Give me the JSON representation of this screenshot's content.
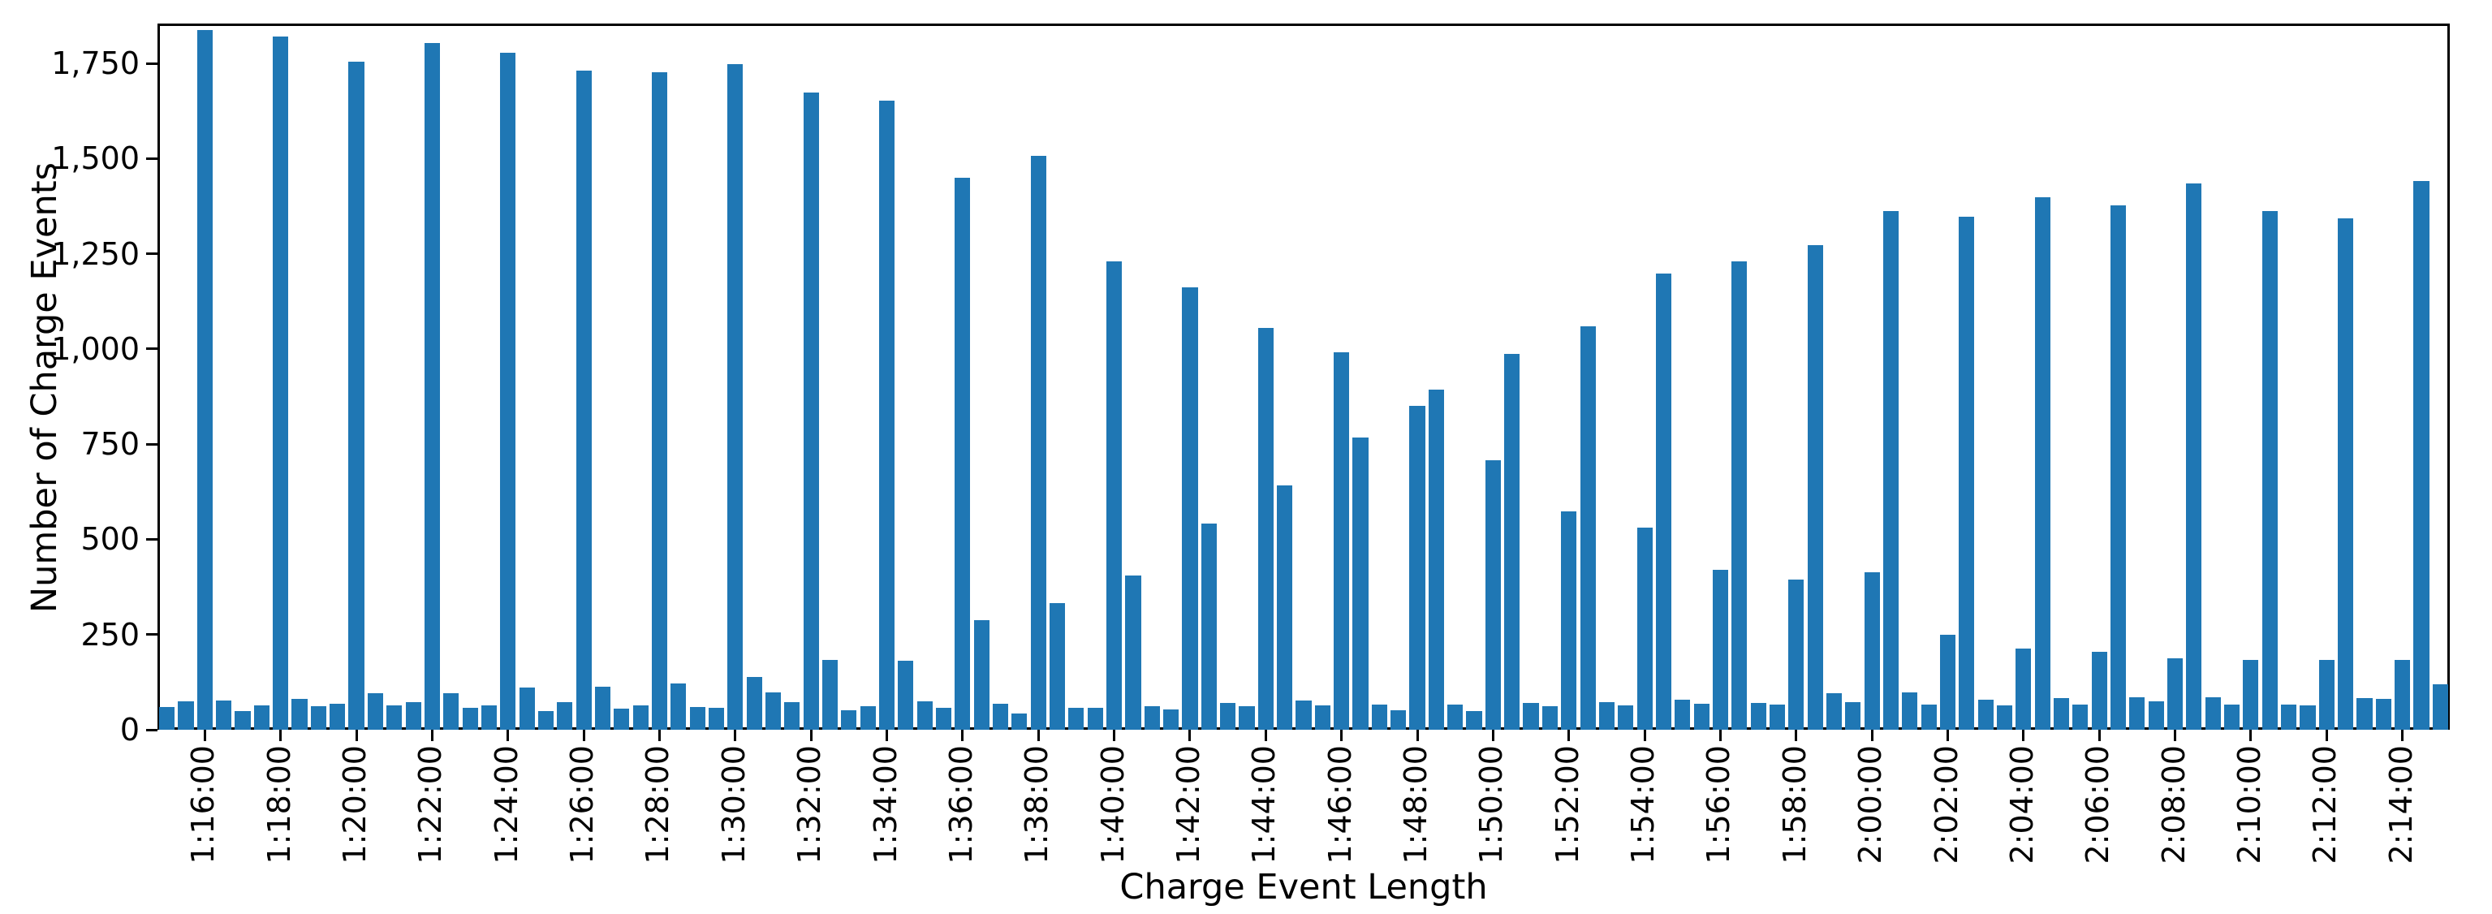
{
  "chart_data": {
    "type": "bar",
    "title": "",
    "xlabel": "Charge Event Length",
    "ylabel": "Number of Charge Events",
    "bar_color": "#1f77b4",
    "axis_color": "#000000",
    "background_color": "#ffffff",
    "grid": false,
    "legend": null,
    "ylim": [
      0,
      1855
    ],
    "bin_seconds": 30,
    "categories": [
      "1:15:00",
      "1:15:30",
      "1:16:00",
      "1:16:30",
      "1:17:00",
      "1:17:30",
      "1:18:00",
      "1:18:30",
      "1:19:00",
      "1:19:30",
      "1:20:00",
      "1:20:30",
      "1:21:00",
      "1:21:30",
      "1:22:00",
      "1:22:30",
      "1:23:00",
      "1:23:30",
      "1:24:00",
      "1:24:30",
      "1:25:00",
      "1:25:30",
      "1:26:00",
      "1:26:30",
      "1:27:00",
      "1:27:30",
      "1:28:00",
      "1:28:30",
      "1:29:00",
      "1:29:30",
      "1:30:00",
      "1:30:30",
      "1:31:00",
      "1:31:30",
      "1:32:00",
      "1:32:30",
      "1:33:00",
      "1:33:30",
      "1:34:00",
      "1:34:30",
      "1:35:00",
      "1:35:30",
      "1:36:00",
      "1:36:30",
      "1:37:00",
      "1:37:30",
      "1:38:00",
      "1:38:30",
      "1:39:00",
      "1:39:30",
      "1:40:00",
      "1:40:30",
      "1:41:00",
      "1:41:30",
      "1:42:00",
      "1:42:30",
      "1:43:00",
      "1:43:30",
      "1:44:00",
      "1:44:30",
      "1:45:00",
      "1:45:30",
      "1:46:00",
      "1:46:30",
      "1:47:00",
      "1:47:30",
      "1:48:00",
      "1:48:30",
      "1:49:00",
      "1:49:30",
      "1:50:00",
      "1:50:30",
      "1:51:00",
      "1:51:30",
      "1:52:00",
      "1:52:30",
      "1:53:00",
      "1:53:30",
      "1:54:00",
      "1:54:30",
      "1:55:00",
      "1:55:30",
      "1:56:00",
      "1:56:30",
      "1:57:00",
      "1:57:30",
      "1:58:00",
      "1:58:30",
      "1:59:00",
      "1:59:30",
      "2:00:00",
      "2:00:30",
      "2:01:00",
      "2:01:30",
      "2:02:00",
      "2:02:30",
      "2:03:00",
      "2:03:30",
      "2:04:00",
      "2:04:30",
      "2:05:00",
      "2:05:30",
      "2:06:00",
      "2:06:30",
      "2:07:00",
      "2:07:30",
      "2:08:00",
      "2:08:30",
      "2:09:00",
      "2:09:30",
      "2:10:00",
      "2:10:30",
      "2:11:00",
      "2:11:30",
      "2:12:00",
      "2:12:30",
      "2:13:00",
      "2:13:30",
      "2:14:00",
      "2:14:30",
      "2:15:00"
    ],
    "values": [
      59,
      74,
      1838,
      76,
      50,
      63,
      1821,
      80,
      61,
      68,
      1755,
      96,
      63,
      73,
      1804,
      95,
      58,
      63,
      1779,
      110,
      49,
      73,
      1731,
      114,
      56,
      65,
      1727,
      121,
      60,
      57,
      1748,
      138,
      98,
      72,
      1673,
      184,
      52,
      61,
      1652,
      181,
      74,
      57,
      1449,
      287,
      68,
      43,
      1507,
      333,
      57,
      57,
      1231,
      406,
      62,
      54,
      1163,
      542,
      71,
      62,
      1055,
      642,
      77,
      64,
      992,
      767,
      66,
      52,
      851,
      894,
      66,
      48,
      708,
      988,
      70,
      62,
      574,
      1059,
      72,
      63,
      531,
      1199,
      79,
      69,
      420,
      1231,
      70,
      67,
      394,
      1272,
      96,
      72,
      413,
      1362,
      98,
      67,
      250,
      1347,
      79,
      65,
      214,
      1399,
      84,
      67,
      205,
      1378,
      86,
      74,
      187,
      1436,
      86,
      67,
      184,
      1362,
      67,
      65,
      183,
      1343,
      83,
      80,
      184,
      1442,
      120
    ],
    "x_tick_indices": [
      2,
      6,
      10,
      14,
      18,
      22,
      26,
      30,
      34,
      38,
      42,
      46,
      50,
      54,
      58,
      62,
      66,
      70,
      74,
      78,
      82,
      86,
      90,
      94,
      98,
      102,
      106,
      110,
      114,
      118
    ],
    "x_tick_labels": [
      "1:16:00",
      "1:18:00",
      "1:20:00",
      "1:22:00",
      "1:24:00",
      "1:26:00",
      "1:28:00",
      "1:30:00",
      "1:32:00",
      "1:34:00",
      "1:36:00",
      "1:38:00",
      "1:40:00",
      "1:42:00",
      "1:44:00",
      "1:46:00",
      "1:48:00",
      "1:50:00",
      "1:52:00",
      "1:54:00",
      "1:56:00",
      "1:58:00",
      "2:00:00",
      "2:02:00",
      "2:04:00",
      "2:06:00",
      "2:08:00",
      "2:10:00",
      "2:12:00",
      "2:14:00"
    ],
    "y_ticks": [
      {
        "value": 0,
        "label": "0"
      },
      {
        "value": 250,
        "label": "250"
      },
      {
        "value": 500,
        "label": "500"
      },
      {
        "value": 750,
        "label": "750"
      },
      {
        "value": 1000,
        "label": "1,000"
      },
      {
        "value": 1250,
        "label": "1,250"
      },
      {
        "value": 1500,
        "label": "1,500"
      },
      {
        "value": 1750,
        "label": "1,750"
      }
    ]
  }
}
